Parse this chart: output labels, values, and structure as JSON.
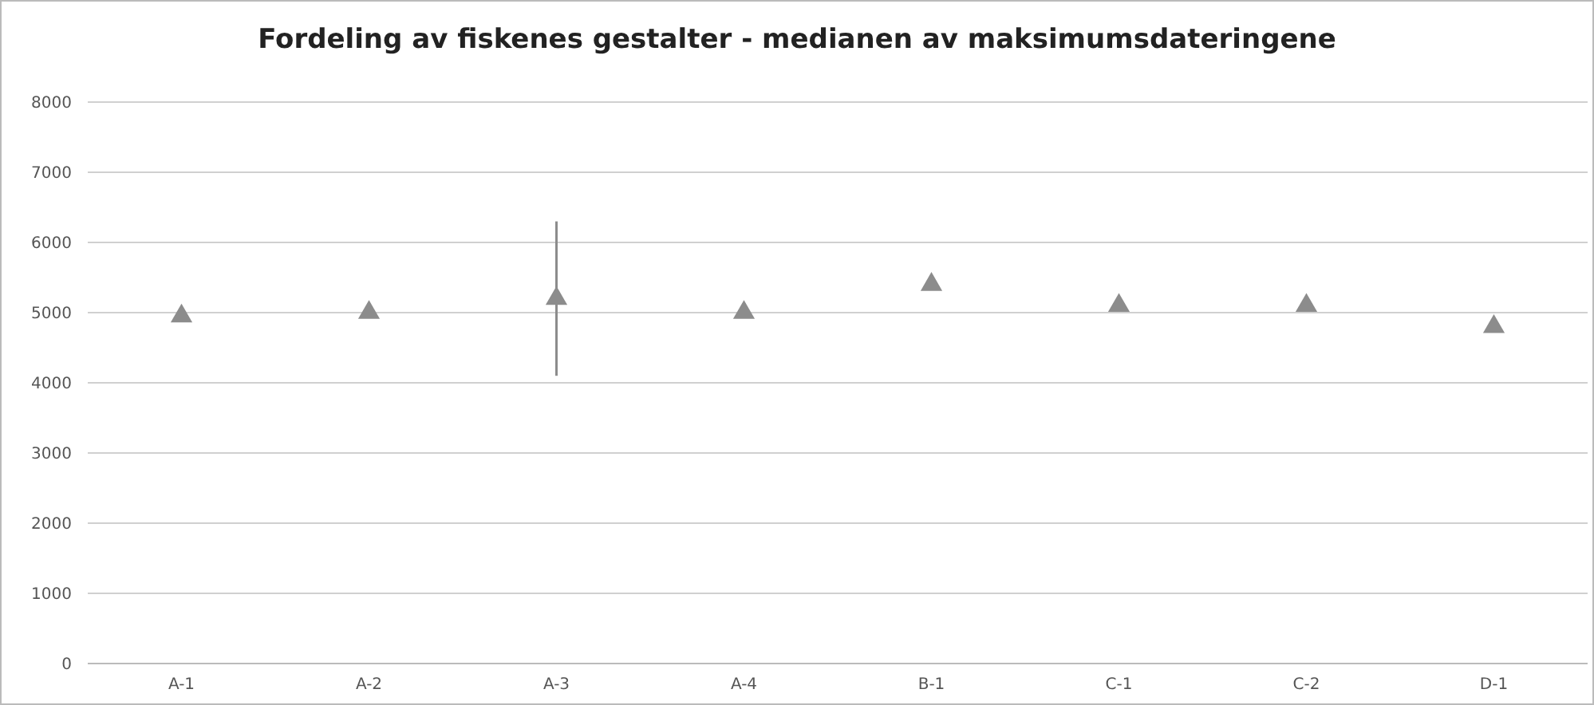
{
  "chart_data": {
    "type": "scatter",
    "title": "Fordeling av fiskenes gestalter - medianen av maksimumsdateringene",
    "categories": [
      "A-1",
      "A-2",
      "A-3",
      "A-4",
      "B-1",
      "C-1",
      "C-2",
      "D-1"
    ],
    "values": [
      4950,
      5000,
      5200,
      5000,
      5400,
      5100,
      5100,
      4800
    ],
    "errors": [
      null,
      null,
      [
        4100,
        6300
      ],
      null,
      null,
      null,
      null,
      null
    ],
    "color": "#8c8c8c",
    "marker": "triangle",
    "grid": "y",
    "ylim": [
      0,
      8000
    ],
    "yticks": [
      0,
      1000,
      2000,
      3000,
      4000,
      5000,
      6000,
      7000,
      8000
    ]
  }
}
